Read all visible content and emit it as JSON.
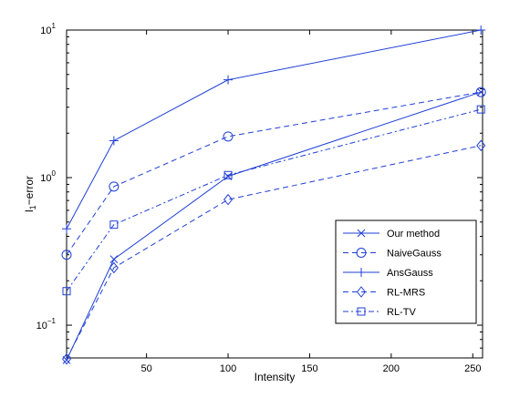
{
  "chart_data": {
    "type": "line",
    "title": "",
    "xlabel": "Intensity",
    "ylabel_main": "l",
    "ylabel_sub": "1",
    "ylabel_rest": "−error",
    "xlim": [
      1,
      256
    ],
    "ylim": [
      0.06,
      10
    ],
    "yscale": "log",
    "grid": false,
    "legend_placement": "bottom-right",
    "x_ticks": [
      50,
      100,
      150,
      200,
      250
    ],
    "x_tick_labels": [
      "50",
      "100",
      "150",
      "200",
      "250"
    ],
    "y_ticks": [
      {
        "value": 0.1,
        "base": "10",
        "exp": "−1"
      },
      {
        "value": 1,
        "base": "10",
        "exp": "0"
      },
      {
        "value": 10,
        "base": "10",
        "exp": "1"
      }
    ],
    "x": [
      1,
      30,
      100,
      255
    ],
    "series": [
      {
        "name": "Our method",
        "values": [
          0.058,
          0.28,
          1.02,
          3.8
        ],
        "marker": "x",
        "dash": "solid"
      },
      {
        "name": "NaiveGauss",
        "values": [
          0.3,
          0.87,
          1.9,
          3.8
        ],
        "marker": "o",
        "dash": "dashed"
      },
      {
        "name": "AnsGauss",
        "values": [
          0.45,
          1.78,
          4.6,
          10.0
        ],
        "marker": "+",
        "dash": "solid"
      },
      {
        "name": "RL-MRS",
        "values": [
          0.059,
          0.245,
          0.71,
          1.65
        ],
        "marker": "diamond",
        "dash": "dashed"
      },
      {
        "name": "RL-TV",
        "values": [
          0.17,
          0.48,
          1.04,
          2.9
        ],
        "marker": "square",
        "dash": "dashdot"
      }
    ]
  },
  "colors": {
    "line": "#1f3fd6",
    "axis": "#000000",
    "background": "#ffffff"
  }
}
